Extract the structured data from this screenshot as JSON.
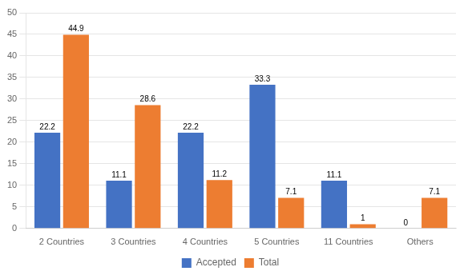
{
  "chart_data": {
    "type": "bar",
    "categories": [
      "2 Countries",
      "3 Countries",
      "4 Countries",
      "5 Countries",
      "11 Countries",
      "Others"
    ],
    "series": [
      {
        "name": "Accepted",
        "color": "#4472C4",
        "values": [
          22.2,
          11.1,
          22.2,
          33.3,
          11.1,
          0
        ]
      },
      {
        "name": "Total",
        "color": "#ED7D31",
        "values": [
          44.9,
          28.6,
          11.2,
          7.1,
          1,
          7.1
        ]
      }
    ],
    "ylim": [
      0,
      50
    ],
    "yticks": [
      0,
      5,
      10,
      15,
      20,
      25,
      30,
      35,
      40,
      45,
      50
    ],
    "grid": true,
    "legend": "bottom",
    "data_labels": true
  }
}
